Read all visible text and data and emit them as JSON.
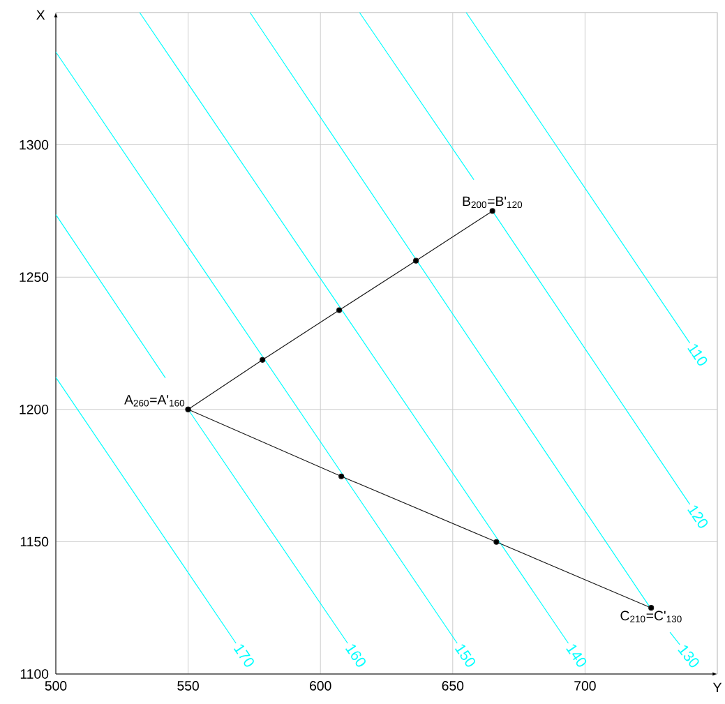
{
  "chart_data": {
    "type": "line",
    "xlabel": "Y",
    "ylabel": "X",
    "xlim": [
      500,
      750
    ],
    "ylim": [
      1100,
      1350
    ],
    "xticks": [
      500,
      550,
      600,
      650,
      700,
      {
        "value": 750,
        "label": null
      }
    ],
    "yticks": [
      1100,
      1150,
      1200,
      1250,
      1300,
      {
        "value": 1350,
        "label": null
      }
    ],
    "grid": true,
    "series": [
      {
        "name": "170",
        "color": "#00ffff",
        "marker": "none",
        "x": [
          500,
          568.1
        ],
        "values": [
          1212.1,
          1111.6
        ]
      },
      {
        "name": "160",
        "color": "#00ffff",
        "marker": "none",
        "x": [
          500,
          541.4,
          null,
          550,
          610.3
        ],
        "values": [
          1273.6,
          1211.9,
          null,
          1200,
          1111.6
        ]
      },
      {
        "name": "150",
        "color": "#00ffff",
        "marker": "none",
        "x": [
          500,
          651.7
        ],
        "values": [
          1335.1,
          1111.6
        ]
      },
      {
        "name": "140",
        "color": "#00ffff",
        "marker": "none",
        "x": [
          531.7,
          693.7
        ],
        "values": [
          1350,
          1111.6
        ]
      },
      {
        "name": "130",
        "color": "#00ffff",
        "marker": "none",
        "x": [
          573.4,
          724.8,
          null,
          732.1,
          735.8
        ],
        "values": [
          1350,
          1124.8,
          null,
          1115.8,
          1111.1
        ]
      },
      {
        "name": "120",
        "color": "#00ffff",
        "marker": "none",
        "x": [
          614.8,
          658.0,
          null,
          665,
          739.6
        ],
        "values": [
          1350,
          1286.8,
          null,
          1275,
          1164.1
        ]
      },
      {
        "name": "110",
        "color": "#00ffff",
        "marker": "none",
        "x": [
          655.1,
          739.6
        ],
        "values": [
          1350,
          1225.1
        ]
      },
      {
        "color": "#1a1a1a",
        "marker": "circle",
        "x": [
          550,
          578.1,
          607.1,
          636.1,
          665
        ],
        "values": [
          1200,
          1218.7,
          1237.5,
          1256.2,
          1275
        ]
      },
      {
        "color": "#1a1a1a",
        "marker": "circle",
        "x": [
          550,
          607.9,
          666.5,
          725
        ],
        "values": [
          1200,
          1174.7,
          1149.9,
          1125
        ]
      }
    ],
    "annotations": [
      {
        "text": "A$_{260}$=A'$_{160}$",
        "x": 550,
        "y": 1200
      },
      {
        "text": "B$_{200}$=B'$_{120}$",
        "x": 665,
        "y": 1275
      },
      {
        "text": "C$_{210}$=C'$_{130}$",
        "x": 725,
        "y": 1125
      }
    ]
  }
}
